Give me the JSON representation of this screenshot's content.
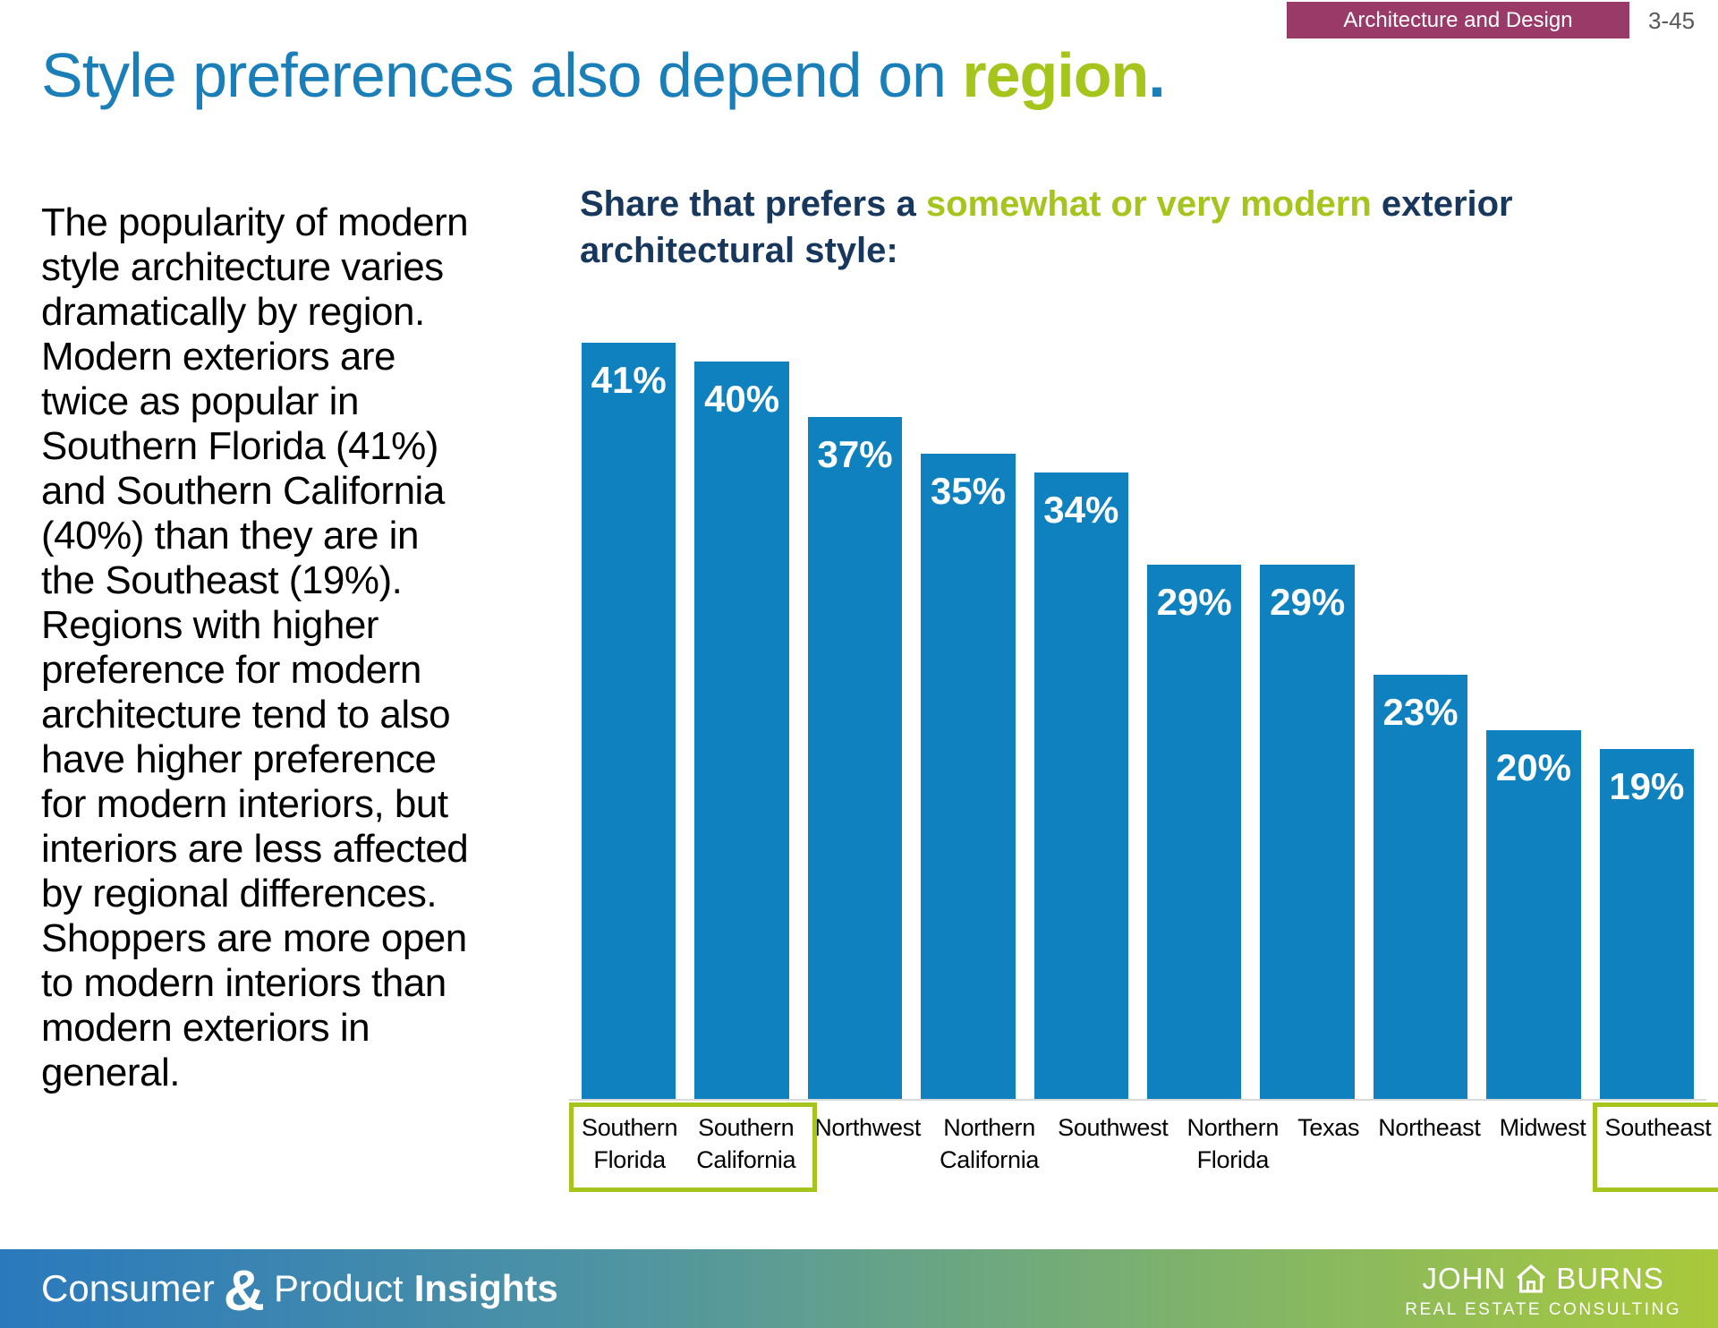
{
  "badge": {
    "label": "Architecture and Design",
    "page_number": "3-45",
    "color": "#993A68"
  },
  "title": {
    "prefix": "Style preferences also depend on ",
    "highlight": "region",
    "suffix": ".",
    "color": "#1A7EB8",
    "highlight_color": "#A5C41C"
  },
  "body_paragraph": "The popularity of modern\nstyle architecture varies\ndramatically by region.\nModern exteriors are\ntwice as popular in\nSouthern Florida (41%)\nand Southern California\n(40%) than they are in\nthe Southeast (19%).\nRegions with higher\npreference for modern\narchitecture tend to also\nhave higher preference\nfor modern interiors, but\ninteriors are less affected\nby regional differences.\nShoppers are more open\nto modern interiors than\nmodern exteriors in\ngeneral.",
  "chart_heading": {
    "prefix": "Share that prefers a ",
    "highlight": "somewhat or very modern",
    "suffix": " exterior architectural style:",
    "color": "#17375D"
  },
  "chart_data": {
    "type": "bar",
    "title": "Share that prefers a somewhat or very modern exterior architectural style",
    "categories": [
      "Southern Florida",
      "Southern California",
      "Northwest",
      "Northern California",
      "Southwest",
      "Northern Florida",
      "Texas",
      "Northeast",
      "Midwest",
      "Southeast"
    ],
    "values": [
      41,
      40,
      37,
      35,
      34,
      29,
      29,
      23,
      20,
      19
    ],
    "labels": [
      "41%",
      "40%",
      "37%",
      "35%",
      "34%",
      "29%",
      "29%",
      "23%",
      "20%",
      "19%"
    ],
    "xlabel": "",
    "ylabel": "",
    "ylim": [
      0,
      45
    ],
    "grid": false,
    "legend": false,
    "bar_color": "#0F81BE",
    "value_label_color": "#FFFFFF",
    "highlight_boxes": [
      [
        0,
        1
      ],
      [
        9
      ]
    ],
    "highlight_box_color": "#A5C41C"
  },
  "footer": {
    "brand": {
      "word1": "Consumer",
      "ampersand": "&",
      "word2": "Product",
      "word3": "Insights"
    },
    "logo": {
      "name_left": "JOHN",
      "name_right": "BURNS",
      "tagline": "REAL ESTATE CONSULTING"
    },
    "gradient_left": "#2A79BC",
    "gradient_right": "#A9C93B"
  }
}
